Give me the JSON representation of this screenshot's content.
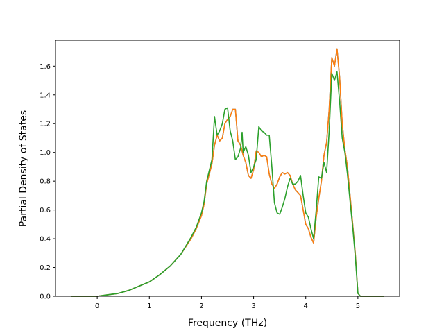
{
  "chart_data": {
    "type": "line",
    "title": "",
    "xlabel": "Frequency (THz)",
    "ylabel": "Partial Density of States",
    "xlim": [
      -0.8,
      5.8
    ],
    "ylim": [
      0,
      1.78
    ],
    "xticks": [
      0,
      1,
      2,
      3,
      4,
      5
    ],
    "xtick_labels": [
      "0",
      "1",
      "2",
      "3",
      "4",
      "5"
    ],
    "yticks": [
      0,
      0.2,
      0.4,
      0.6,
      0.8,
      1.0,
      1.2,
      1.4,
      1.6
    ],
    "ytick_labels": [
      "0.0",
      "0.2",
      "0.4",
      "0.6",
      "0.8",
      "1.0",
      "1.2",
      "1.4",
      "1.6"
    ],
    "grid": false,
    "legend": "none",
    "series": [
      {
        "color": "#1f77b4",
        "points": [
          [
            -0.5,
            0
          ],
          [
            0,
            0
          ],
          [
            0.2,
            0.01
          ],
          [
            0.4,
            0.02
          ],
          [
            0.6,
            0.04
          ],
          [
            0.8,
            0.07
          ],
          [
            1.0,
            0.1
          ],
          [
            1.2,
            0.15
          ],
          [
            1.4,
            0.21
          ],
          [
            1.6,
            0.29
          ],
          [
            1.8,
            0.4
          ],
          [
            1.9,
            0.47
          ],
          [
            2.0,
            0.56
          ],
          [
            2.05,
            0.64
          ],
          [
            2.1,
            0.78
          ],
          [
            2.2,
            0.92
          ],
          [
            2.25,
            1.05
          ],
          [
            2.3,
            1.12
          ],
          [
            2.35,
            1.08
          ],
          [
            2.4,
            1.1
          ],
          [
            2.45,
            1.2
          ],
          [
            2.5,
            1.23
          ],
          [
            2.55,
            1.25
          ],
          [
            2.6,
            1.3
          ],
          [
            2.65,
            1.3
          ],
          [
            2.7,
            1.08
          ],
          [
            2.75,
            1.05
          ],
          [
            2.8,
            0.98
          ],
          [
            2.85,
            0.93
          ],
          [
            2.9,
            0.84
          ],
          [
            2.95,
            0.82
          ],
          [
            3.0,
            0.88
          ],
          [
            3.05,
            1.01
          ],
          [
            3.1,
            1.0
          ],
          [
            3.15,
            0.97
          ],
          [
            3.2,
            0.98
          ],
          [
            3.25,
            0.97
          ],
          [
            3.3,
            0.85
          ],
          [
            3.35,
            0.78
          ],
          [
            3.4,
            0.75
          ],
          [
            3.45,
            0.78
          ],
          [
            3.5,
            0.83
          ],
          [
            3.55,
            0.86
          ],
          [
            3.6,
            0.85
          ],
          [
            3.65,
            0.86
          ],
          [
            3.7,
            0.84
          ],
          [
            3.75,
            0.78
          ],
          [
            3.8,
            0.74
          ],
          [
            3.85,
            0.72
          ],
          [
            3.9,
            0.7
          ],
          [
            3.95,
            0.6
          ],
          [
            4.0,
            0.5
          ],
          [
            4.05,
            0.47
          ],
          [
            4.1,
            0.41
          ],
          [
            4.15,
            0.37
          ],
          [
            4.2,
            0.55
          ],
          [
            4.25,
            0.68
          ],
          [
            4.3,
            0.8
          ],
          [
            4.35,
            0.98
          ],
          [
            4.4,
            1.07
          ],
          [
            4.45,
            1.3
          ],
          [
            4.5,
            1.66
          ],
          [
            4.55,
            1.6
          ],
          [
            4.6,
            1.72
          ],
          [
            4.65,
            1.52
          ],
          [
            4.7,
            1.2
          ],
          [
            4.75,
            1.02
          ],
          [
            4.8,
            0.9
          ],
          [
            4.85,
            0.7
          ],
          [
            4.9,
            0.5
          ],
          [
            4.95,
            0.3
          ],
          [
            5.0,
            0.02
          ],
          [
            5.05,
            0
          ],
          [
            5.5,
            0
          ]
        ]
      },
      {
        "color": "#ff7f0e",
        "points": [
          [
            -0.5,
            0
          ],
          [
            0,
            0
          ],
          [
            0.2,
            0.01
          ],
          [
            0.4,
            0.02
          ],
          [
            0.6,
            0.04
          ],
          [
            0.8,
            0.07
          ],
          [
            1.0,
            0.1
          ],
          [
            1.2,
            0.15
          ],
          [
            1.4,
            0.21
          ],
          [
            1.6,
            0.29
          ],
          [
            1.8,
            0.4
          ],
          [
            1.9,
            0.47
          ],
          [
            2.0,
            0.56
          ],
          [
            2.05,
            0.64
          ],
          [
            2.1,
            0.78
          ],
          [
            2.2,
            0.92
          ],
          [
            2.25,
            1.05
          ],
          [
            2.3,
            1.12
          ],
          [
            2.35,
            1.08
          ],
          [
            2.4,
            1.1
          ],
          [
            2.45,
            1.2
          ],
          [
            2.5,
            1.23
          ],
          [
            2.55,
            1.25
          ],
          [
            2.6,
            1.3
          ],
          [
            2.65,
            1.3
          ],
          [
            2.7,
            1.08
          ],
          [
            2.75,
            1.05
          ],
          [
            2.8,
            0.98
          ],
          [
            2.85,
            0.93
          ],
          [
            2.9,
            0.84
          ],
          [
            2.95,
            0.82
          ],
          [
            3.0,
            0.88
          ],
          [
            3.05,
            1.01
          ],
          [
            3.1,
            1.0
          ],
          [
            3.15,
            0.97
          ],
          [
            3.2,
            0.98
          ],
          [
            3.25,
            0.97
          ],
          [
            3.3,
            0.85
          ],
          [
            3.35,
            0.78
          ],
          [
            3.4,
            0.75
          ],
          [
            3.45,
            0.78
          ],
          [
            3.5,
            0.83
          ],
          [
            3.55,
            0.86
          ],
          [
            3.6,
            0.85
          ],
          [
            3.65,
            0.86
          ],
          [
            3.7,
            0.84
          ],
          [
            3.75,
            0.78
          ],
          [
            3.8,
            0.74
          ],
          [
            3.85,
            0.72
          ],
          [
            3.9,
            0.7
          ],
          [
            3.95,
            0.6
          ],
          [
            4.0,
            0.5
          ],
          [
            4.05,
            0.47
          ],
          [
            4.1,
            0.41
          ],
          [
            4.15,
            0.37
          ],
          [
            4.2,
            0.55
          ],
          [
            4.25,
            0.68
          ],
          [
            4.3,
            0.8
          ],
          [
            4.35,
            0.98
          ],
          [
            4.4,
            1.07
          ],
          [
            4.45,
            1.3
          ],
          [
            4.5,
            1.66
          ],
          [
            4.55,
            1.6
          ],
          [
            4.6,
            1.72
          ],
          [
            4.65,
            1.52
          ],
          [
            4.7,
            1.2
          ],
          [
            4.75,
            1.02
          ],
          [
            4.8,
            0.9
          ],
          [
            4.85,
            0.7
          ],
          [
            4.9,
            0.5
          ],
          [
            4.95,
            0.3
          ],
          [
            5.0,
            0.02
          ],
          [
            5.05,
            0
          ],
          [
            5.5,
            0
          ]
        ]
      },
      {
        "color": "#2ca02c",
        "points": [
          [
            -0.5,
            0
          ],
          [
            0,
            0
          ],
          [
            0.2,
            0.01
          ],
          [
            0.4,
            0.02
          ],
          [
            0.6,
            0.04
          ],
          [
            0.8,
            0.07
          ],
          [
            1.0,
            0.1
          ],
          [
            1.2,
            0.15
          ],
          [
            1.4,
            0.21
          ],
          [
            1.6,
            0.29
          ],
          [
            1.8,
            0.41
          ],
          [
            1.9,
            0.48
          ],
          [
            2.0,
            0.58
          ],
          [
            2.05,
            0.66
          ],
          [
            2.1,
            0.8
          ],
          [
            2.2,
            0.95
          ],
          [
            2.25,
            1.25
          ],
          [
            2.3,
            1.12
          ],
          [
            2.35,
            1.15
          ],
          [
            2.4,
            1.2
          ],
          [
            2.45,
            1.3
          ],
          [
            2.5,
            1.31
          ],
          [
            2.55,
            1.15
          ],
          [
            2.6,
            1.08
          ],
          [
            2.65,
            0.95
          ],
          [
            2.7,
            0.97
          ],
          [
            2.75,
            1.03
          ],
          [
            2.78,
            1.14
          ],
          [
            2.8,
            1.0
          ],
          [
            2.85,
            1.04
          ],
          [
            2.9,
            0.98
          ],
          [
            2.95,
            0.86
          ],
          [
            3.0,
            0.9
          ],
          [
            3.05,
            0.95
          ],
          [
            3.1,
            1.18
          ],
          [
            3.15,
            1.15
          ],
          [
            3.2,
            1.14
          ],
          [
            3.25,
            1.12
          ],
          [
            3.3,
            1.12
          ],
          [
            3.35,
            0.9
          ],
          [
            3.4,
            0.65
          ],
          [
            3.45,
            0.58
          ],
          [
            3.5,
            0.57
          ],
          [
            3.55,
            0.62
          ],
          [
            3.6,
            0.68
          ],
          [
            3.65,
            0.76
          ],
          [
            3.7,
            0.82
          ],
          [
            3.75,
            0.78
          ],
          [
            3.8,
            0.78
          ],
          [
            3.85,
            0.8
          ],
          [
            3.9,
            0.84
          ],
          [
            3.95,
            0.7
          ],
          [
            4.0,
            0.58
          ],
          [
            4.05,
            0.55
          ],
          [
            4.1,
            0.47
          ],
          [
            4.15,
            0.4
          ],
          [
            4.2,
            0.6
          ],
          [
            4.25,
            0.83
          ],
          [
            4.3,
            0.82
          ],
          [
            4.35,
            0.93
          ],
          [
            4.4,
            0.86
          ],
          [
            4.45,
            1.15
          ],
          [
            4.5,
            1.55
          ],
          [
            4.55,
            1.5
          ],
          [
            4.6,
            1.56
          ],
          [
            4.65,
            1.35
          ],
          [
            4.7,
            1.1
          ],
          [
            4.75,
            1.0
          ],
          [
            4.8,
            0.85
          ],
          [
            4.85,
            0.66
          ],
          [
            4.9,
            0.48
          ],
          [
            4.95,
            0.28
          ],
          [
            5.0,
            0.02
          ],
          [
            5.05,
            0
          ],
          [
            5.5,
            0
          ]
        ]
      }
    ]
  }
}
